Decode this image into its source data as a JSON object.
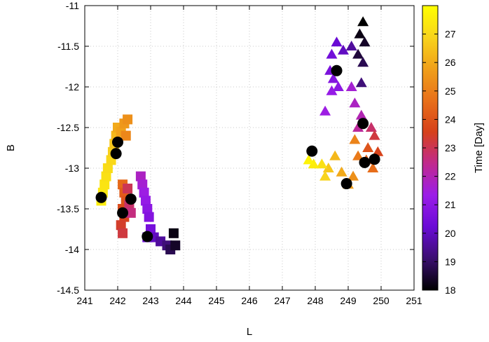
{
  "chart_data": {
    "type": "scatter",
    "title": "",
    "xlabel": "L",
    "ylabel": "B",
    "xlim": [
      241,
      251
    ],
    "ylim": [
      -14.5,
      -11
    ],
    "xticks": [
      "241",
      "242",
      "243",
      "244",
      "245",
      "246",
      "247",
      "248",
      "249",
      "250",
      "251"
    ],
    "yticks": [
      "-11",
      "-11.5",
      "-12",
      "-12.5",
      "-13",
      "-13.5",
      "-14",
      "-14.5"
    ],
    "grid": true,
    "colorbar": {
      "label": "Time [Day]",
      "range": [
        18,
        28
      ],
      "ticks": [
        "18",
        "19",
        "20",
        "21",
        "22",
        "23",
        "24",
        "25",
        "26",
        "27"
      ],
      "palette": [
        "#000000",
        "#3b0f70",
        "#6a0bd6",
        "#9b1de8",
        "#c02a8e",
        "#d6411b",
        "#e8701a",
        "#f0a01a",
        "#f8d41c",
        "#ffff00"
      ]
    },
    "series": [
      {
        "marker": "square",
        "points": [
          [
            241.5,
            -13.4,
            27.5
          ],
          [
            241.55,
            -13.3,
            27.4
          ],
          [
            241.6,
            -13.2,
            27.3
          ],
          [
            241.65,
            -13.1,
            27.2
          ],
          [
            241.7,
            -13.0,
            27.1
          ],
          [
            241.8,
            -12.9,
            27.0
          ],
          [
            241.85,
            -12.8,
            26.8
          ],
          [
            241.9,
            -12.7,
            26.6
          ],
          [
            241.95,
            -12.6,
            26.3
          ],
          [
            242.0,
            -12.5,
            26.0
          ],
          [
            242.1,
            -12.55,
            25.8
          ],
          [
            242.2,
            -12.45,
            25.6
          ],
          [
            242.3,
            -12.4,
            25.4
          ],
          [
            242.25,
            -12.6,
            25.2
          ],
          [
            242.15,
            -13.2,
            24.5
          ],
          [
            242.2,
            -13.3,
            24.2
          ],
          [
            242.25,
            -13.4,
            24.0
          ],
          [
            242.15,
            -13.5,
            23.8
          ],
          [
            242.2,
            -13.6,
            23.6
          ],
          [
            242.1,
            -13.7,
            23.4
          ],
          [
            242.15,
            -13.8,
            23.2
          ],
          [
            242.3,
            -13.25,
            23.0
          ],
          [
            242.35,
            -13.45,
            22.8
          ],
          [
            242.4,
            -13.55,
            22.6
          ],
          [
            242.7,
            -13.1,
            21.8
          ],
          [
            242.75,
            -13.2,
            21.6
          ],
          [
            242.8,
            -13.3,
            21.4
          ],
          [
            242.85,
            -13.4,
            21.2
          ],
          [
            242.9,
            -13.5,
            21.0
          ],
          [
            242.95,
            -13.6,
            20.8
          ],
          [
            243.0,
            -13.75,
            20.5
          ],
          [
            242.9,
            -13.85,
            20.3
          ],
          [
            243.1,
            -13.85,
            20.0
          ],
          [
            243.3,
            -13.9,
            19.6
          ],
          [
            243.5,
            -13.95,
            19.2
          ],
          [
            243.6,
            -14.0,
            18.8
          ],
          [
            243.75,
            -13.95,
            18.4
          ],
          [
            243.7,
            -13.8,
            18.2
          ]
        ]
      },
      {
        "marker": "triangle",
        "points": [
          [
            249.45,
            -11.2,
            18.0
          ],
          [
            249.35,
            -11.35,
            18.2
          ],
          [
            249.5,
            -11.45,
            18.4
          ],
          [
            249.3,
            -11.6,
            18.6
          ],
          [
            249.45,
            -11.7,
            18.8
          ],
          [
            249.4,
            -11.95,
            19.2
          ],
          [
            249.1,
            -11.5,
            19.6
          ],
          [
            248.85,
            -11.55,
            20.0
          ],
          [
            248.65,
            -11.45,
            20.2
          ],
          [
            248.5,
            -11.6,
            20.4
          ],
          [
            248.45,
            -11.8,
            20.6
          ],
          [
            248.55,
            -11.9,
            20.8
          ],
          [
            248.7,
            -12.0,
            21.0
          ],
          [
            248.5,
            -12.05,
            21.2
          ],
          [
            248.3,
            -12.3,
            21.4
          ],
          [
            249.1,
            -12.0,
            21.6
          ],
          [
            249.2,
            -12.2,
            21.8
          ],
          [
            249.4,
            -12.35,
            22.0
          ],
          [
            249.3,
            -12.5,
            22.3
          ],
          [
            249.7,
            -12.5,
            22.8
          ],
          [
            249.8,
            -12.6,
            23.2
          ],
          [
            249.9,
            -12.8,
            23.6
          ],
          [
            249.6,
            -12.75,
            24.0
          ],
          [
            249.55,
            -12.9,
            24.3
          ],
          [
            249.75,
            -13.0,
            24.6
          ],
          [
            249.3,
            -12.85,
            24.9
          ],
          [
            249.2,
            -12.65,
            25.1
          ],
          [
            249.15,
            -13.1,
            25.4
          ],
          [
            249.0,
            -13.2,
            25.7
          ],
          [
            248.8,
            -13.05,
            26.0
          ],
          [
            248.6,
            -12.85,
            26.3
          ],
          [
            248.4,
            -13.0,
            26.6
          ],
          [
            248.3,
            -13.1,
            26.9
          ],
          [
            248.2,
            -12.95,
            27.2
          ],
          [
            247.95,
            -12.95,
            27.5
          ],
          [
            247.8,
            -12.9,
            27.7
          ]
        ]
      }
    ],
    "centroids": [
      [
        241.5,
        -13.36
      ],
      [
        241.95,
        -12.82
      ],
      [
        242.0,
        -12.68
      ],
      [
        242.15,
        -13.55
      ],
      [
        242.4,
        -13.38
      ],
      [
        242.9,
        -13.84
      ],
      [
        247.9,
        -12.79
      ],
      [
        248.65,
        -11.8
      ],
      [
        248.95,
        -13.19
      ],
      [
        249.45,
        -12.45
      ],
      [
        249.5,
        -12.93
      ],
      [
        249.8,
        -12.89
      ]
    ]
  }
}
